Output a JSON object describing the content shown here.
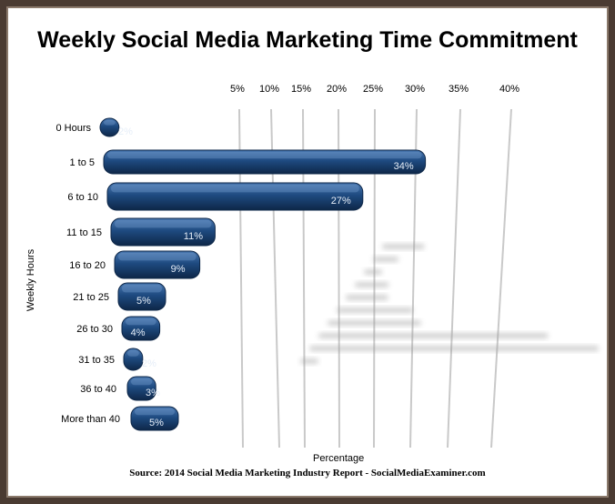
{
  "chart_data": {
    "type": "bar",
    "orientation": "horizontal",
    "title": "Weekly Social Media Marketing Time Commitment",
    "xlabel": "Percentage",
    "ylabel": "Weekly Hours",
    "source": "Source: 2014 Social Media Marketing Industry Report - SocialMediaExaminer.com",
    "categories": [
      "0 Hours",
      "1 to 5",
      "6 to 10",
      "11 to 15",
      "16 to 20",
      "21 to 25",
      "26 to 30",
      "31 to 35",
      "36 to 40",
      "More than 40"
    ],
    "values": [
      2,
      34,
      27,
      11,
      9,
      5,
      4,
      2,
      3,
      5
    ],
    "data_labels": [
      "2%",
      "34%",
      "27%",
      "11%",
      "9%",
      "5%",
      "4%",
      "2%",
      "3%",
      "5%"
    ],
    "ticks": [
      "5%",
      "10%",
      "15%",
      "20%",
      "25%",
      "30%",
      "35%",
      "40%"
    ],
    "xlim": [
      0,
      40
    ],
    "grid": true,
    "colors": {
      "bar": "#1e4a80",
      "bar_highlight": "#4a78b0",
      "bar_shadow": "#0e2748",
      "frame": "#4a3b32"
    }
  }
}
